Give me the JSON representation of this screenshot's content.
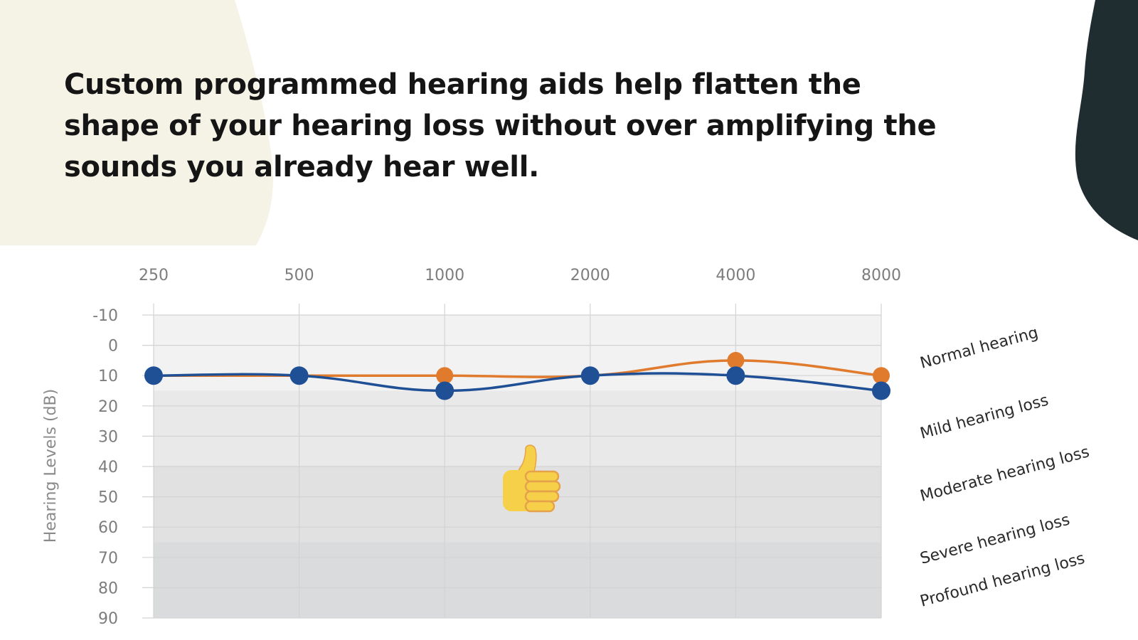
{
  "headline": "Custom programmed hearing aids help flatten the shape of your hearing loss without over amplifying the sounds you already hear well.",
  "colors": {
    "cream": "#f5f3e6",
    "dark_blob": "#1f2d31",
    "orange": "#e07b2e",
    "blue": "#1f4f95"
  },
  "thumbs_up_icon": "thumbs-up-emoji",
  "chart_data": {
    "type": "line",
    "x": [
      250,
      500,
      1000,
      2000,
      4000,
      8000
    ],
    "x_tick_labels": [
      "250",
      "500",
      "1000",
      "2000",
      "4000",
      "8000"
    ],
    "x_axis_position": "top",
    "ylabel": "Hearing Levels (dB)",
    "y_ticks": [
      -10,
      0,
      10,
      20,
      30,
      40,
      50,
      60,
      70,
      80,
      90
    ],
    "ylim": [
      -10,
      90
    ],
    "y_inverted": true,
    "grid": true,
    "series": [
      {
        "values": [
          10,
          10,
          10,
          10,
          5,
          10
        ],
        "color": "#e07b2e"
      },
      {
        "values": [
          10,
          10,
          15,
          10,
          10,
          15
        ],
        "color": "#1f4f95"
      }
    ],
    "bands": [
      {
        "label": "Normal hearing",
        "from": -10,
        "to": 15,
        "color": "#f2f2f2"
      },
      {
        "label": "Mild hearing loss",
        "from": 15,
        "to": 40,
        "color": "#e9e9e9"
      },
      {
        "label": "Moderate hearing loss",
        "from": 40,
        "to": 65,
        "color": "#e1e1e1"
      },
      {
        "label": "Severe hearing loss",
        "from": 65,
        "to": 80,
        "color": "#d9dbdc"
      },
      {
        "label": "Profound hearing loss",
        "from": 80,
        "to": 90,
        "color": "#d9dbdc"
      }
    ]
  }
}
